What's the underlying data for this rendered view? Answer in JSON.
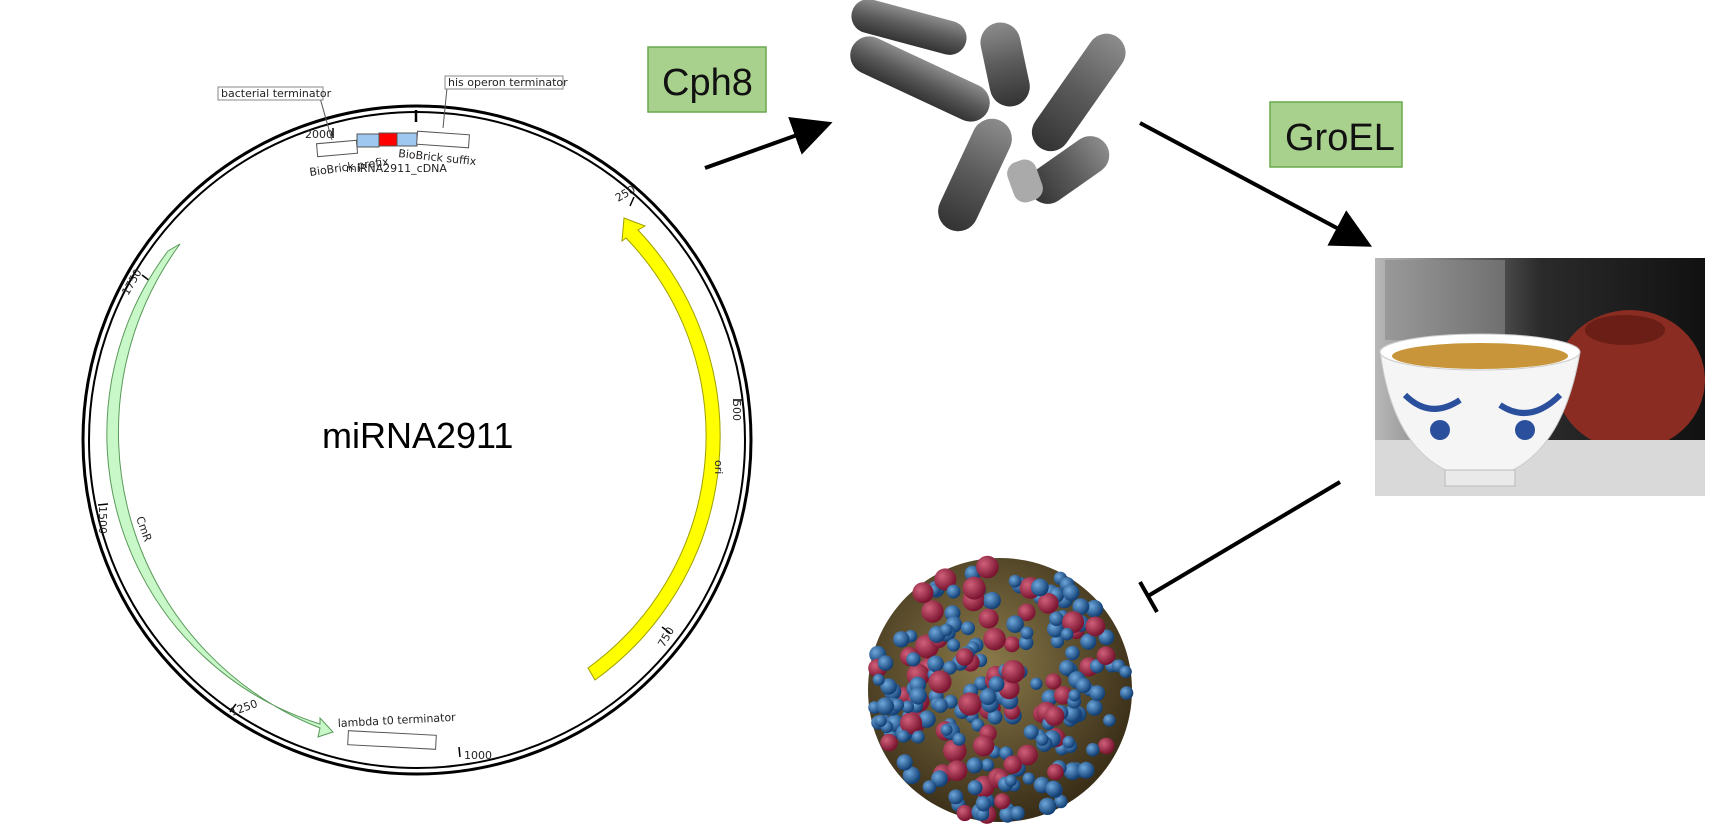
{
  "plasmid": {
    "name": "miRNA2911",
    "features": {
      "bacterial_terminator": "bacterial terminator",
      "his_operon_terminator": "his operon terminator",
      "biobrick_prefix": "BioBrick prefix",
      "biobrick_suffix": "BioBrick suffix",
      "mirna_cdna": "miRNA2911_cDNA",
      "ori": "ori",
      "cmr": "CmR",
      "lambda_terminator": "lambda t0 terminator"
    },
    "ticks": [
      "2000",
      "250",
      "500",
      "750",
      "1000",
      "1250",
      "1500",
      "1750"
    ],
    "colors": {
      "ori": "#ffff00",
      "cmr": "#c8f7c8",
      "mirna": "#ff0000",
      "biobrick": "#9ec8f0"
    }
  },
  "steps": {
    "cph8": "Cph8",
    "groel": "GroEL"
  },
  "images": {
    "bacteria": "bacteria-image",
    "tea": "tea-cup-image",
    "virus": "influenza-virus-image"
  },
  "colors": {
    "label_box_fill": "#a9d18e",
    "label_box_stroke": "#6aa84f"
  }
}
